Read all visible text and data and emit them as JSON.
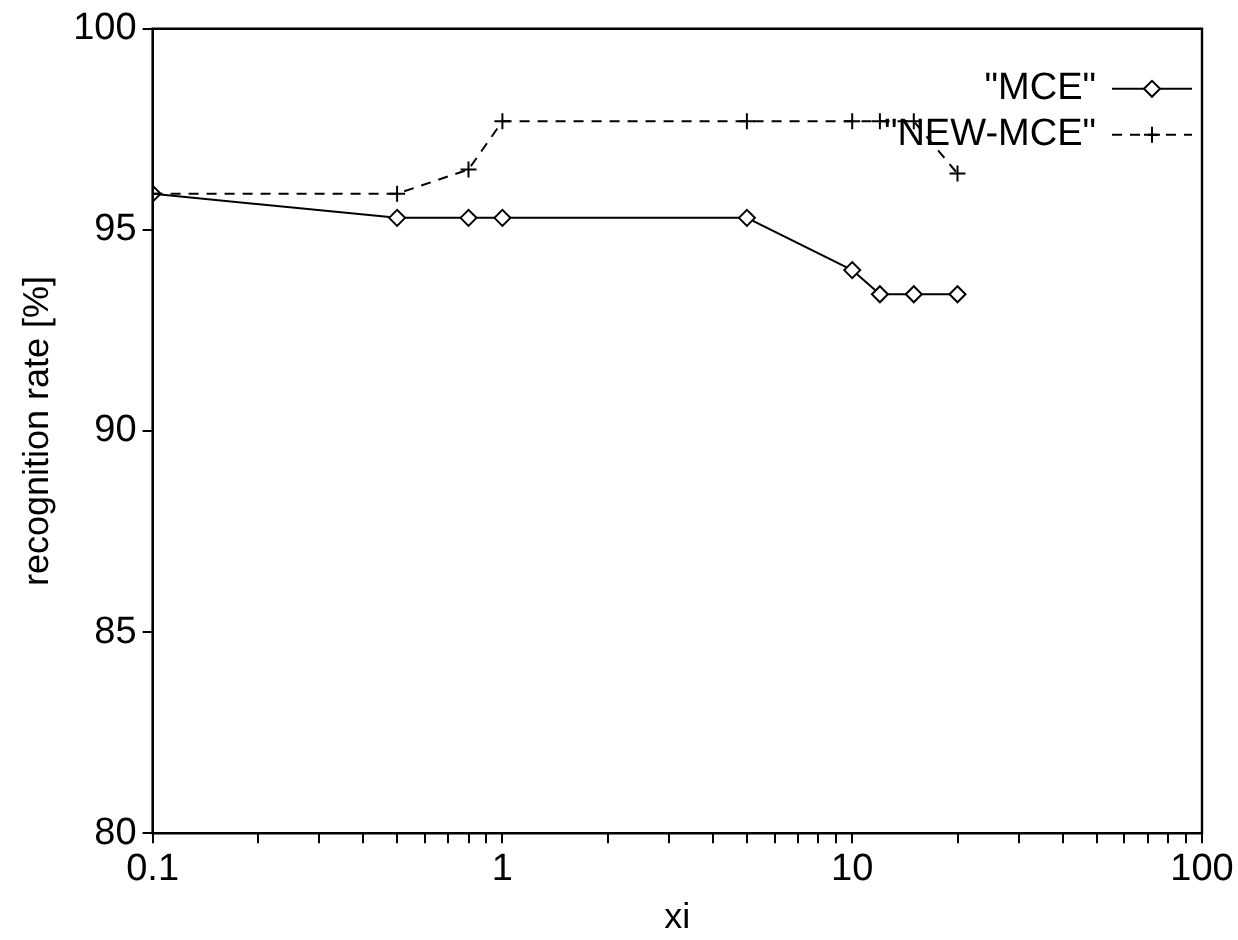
{
  "chart_data": {
    "type": "line",
    "xlabel": "xi",
    "ylabel": "recognition rate [%]",
    "x": [
      0.1,
      0.5,
      0.8,
      1,
      5,
      10,
      12,
      15,
      20
    ],
    "series": [
      {
        "name": "\"MCE\"",
        "color": "#000000",
        "marker": "diamond",
        "line_style": "solid",
        "values": [
          95.9,
          95.3,
          95.3,
          95.3,
          95.3,
          94.0,
          93.4,
          93.4,
          93.4
        ]
      },
      {
        "name": "\"NEW-MCE\"",
        "color": "#000000",
        "marker": "cross",
        "line_style": "dashed",
        "values": [
          95.9,
          95.9,
          96.5,
          97.7,
          97.7,
          97.7,
          97.7,
          97.7,
          96.4
        ]
      }
    ],
    "log": "x",
    "xlim": [
      0.1,
      100
    ],
    "xticks": [
      0.1,
      {
        "value": 0.2,
        "label": null
      },
      {
        "value": 0.3,
        "label": null
      },
      {
        "value": 0.4,
        "label": null
      },
      {
        "value": 0.5,
        "label": null
      },
      {
        "value": 0.6,
        "label": null
      },
      {
        "value": 0.7,
        "label": null
      },
      {
        "value": 0.8,
        "label": null
      },
      {
        "value": 0.9,
        "label": null
      },
      1,
      {
        "value": 2,
        "label": null
      },
      {
        "value": 3,
        "label": null
      },
      {
        "value": 4,
        "label": null
      },
      {
        "value": 5,
        "label": null
      },
      {
        "value": 6,
        "label": null
      },
      {
        "value": 7,
        "label": null
      },
      {
        "value": 8,
        "label": null
      },
      {
        "value": 9,
        "label": null
      },
      10,
      {
        "value": 20,
        "label": null
      },
      {
        "value": 30,
        "label": null
      },
      {
        "value": 40,
        "label": null
      },
      {
        "value": 50,
        "label": null
      },
      {
        "value": 60,
        "label": null
      },
      {
        "value": 70,
        "label": null
      },
      {
        "value": 80,
        "label": null
      },
      {
        "value": 90,
        "label": null
      },
      100
    ],
    "ylim": [
      80,
      100
    ],
    "yticks": [
      80,
      85,
      90,
      95,
      100
    ],
    "grid": false,
    "legend": "top right"
  }
}
